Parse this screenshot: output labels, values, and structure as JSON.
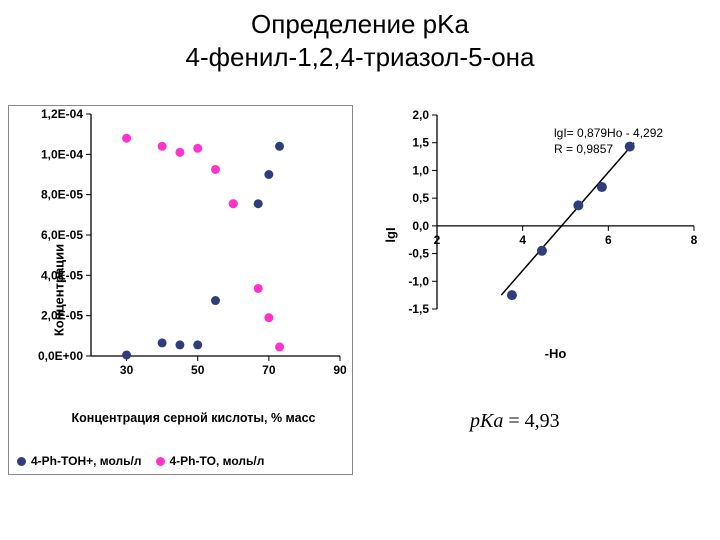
{
  "title_line1": "Определение pKa",
  "title_line2": "4-фенил-1,2,4-триазол-5-она",
  "pka_expr": "pKa = 4,93",
  "left_chart": {
    "type": "scatter",
    "x_label": "Концентрация серной кислоты, % масс",
    "y_label": "Концентрации",
    "background_color": "#ffffff",
    "border_color": "#888888",
    "axis_color": "#000000",
    "grid": false,
    "xlim": [
      20,
      90
    ],
    "ylim": [
      0,
      0.00012
    ],
    "x_ticks": [
      30,
      50,
      70,
      90
    ],
    "x_tick_labels": [
      "30",
      "50",
      "70",
      "90"
    ],
    "y_ticks": [
      0,
      2e-05,
      4e-05,
      6e-05,
      8e-05,
      0.0001,
      0.00012
    ],
    "y_tick_labels": [
      "0,0E+00",
      "2,0E-05",
      "4,0E-05",
      "6,0E-05",
      "8,0E-05",
      "1,0E-04",
      "1,2E-04"
    ],
    "tick_fontsize": 12,
    "tick_fontweight": "700",
    "label_fontsize": 13,
    "marker_radius": 4.5,
    "series": [
      {
        "name": "4-Ph-TOH+, моль/л",
        "color": "#2f3e7a",
        "points": [
          [
            30,
            5e-07
          ],
          [
            40,
            6.5e-06
          ],
          [
            45,
            5.5e-06
          ],
          [
            50,
            5.5e-06
          ],
          [
            55,
            2.75e-05
          ],
          [
            60,
            7.55e-05
          ],
          [
            67,
            7.55e-05
          ],
          [
            70,
            9e-05
          ],
          [
            73,
            0.000104
          ]
        ]
      },
      {
        "name": "4-Ph-TO, моль/л",
        "color": "#ff33cc",
        "points": [
          [
            30,
            0.000108
          ],
          [
            40,
            0.000104
          ],
          [
            45,
            0.000101
          ],
          [
            50,
            0.000103
          ],
          [
            55,
            9.25e-05
          ],
          [
            60,
            7.55e-05
          ],
          [
            67,
            3.35e-05
          ],
          [
            70,
            1.9e-05
          ],
          [
            73,
            4.5e-06
          ]
        ]
      }
    ],
    "legend_items": [
      {
        "label": "4-Ph-TOH+, моль/л",
        "color": "#2f3e7a"
      },
      {
        "label": "4-Ph-TO, моль/л",
        "color": "#ff33cc"
      }
    ]
  },
  "right_chart": {
    "type": "scatter",
    "x_label": "-Ho",
    "y_label": "lgI",
    "background_color": "#ffffff",
    "axis_color": "#000000",
    "grid": false,
    "xlim": [
      2,
      8
    ],
    "ylim": [
      -1.5,
      2.0
    ],
    "x_ticks": [
      2,
      4,
      6,
      8
    ],
    "x_tick_labels": [
      "2",
      "4",
      "6",
      "8"
    ],
    "y_ticks": [
      -1.5,
      -1.0,
      -0.5,
      0.0,
      0.5,
      1.0,
      1.5,
      2.0
    ],
    "y_tick_labels": [
      "-1,5",
      "-1,0",
      "-0,5",
      "0,0",
      "0,5",
      "1,0",
      "1,5",
      "2,0"
    ],
    "tick_fontsize": 12,
    "tick_fontweight": "700",
    "label_fontsize": 13,
    "marker_radius": 5,
    "series_color": "#2f3e7a",
    "points": [
      [
        3.75,
        -1.25
      ],
      [
        4.45,
        -0.45
      ],
      [
        5.3,
        0.37
      ],
      [
        5.85,
        0.7
      ],
      [
        6.5,
        1.43
      ]
    ],
    "fit_line": {
      "x1": 3.5,
      "y1": -1.25,
      "x2": 6.6,
      "y2": 1.5,
      "color": "#000000",
      "width": 1.5
    },
    "equation_line1": "lgI= 0,879Ho - 4,292",
    "equation_line2": "R = 0,9857"
  }
}
